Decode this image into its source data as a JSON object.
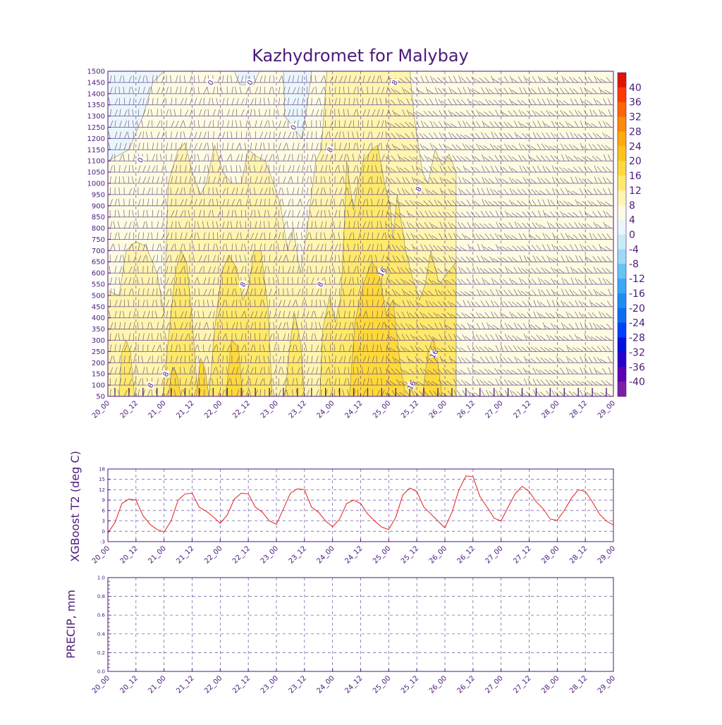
{
  "title": "Kazhydromet for Malybay",
  "time_labels": [
    "20_00",
    "20_12",
    "21_00",
    "21_12",
    "22_00",
    "22_12",
    "23_00",
    "23_12",
    "24_00",
    "24_12",
    "25_00",
    "25_12",
    "26_00",
    "26_12",
    "27_00",
    "27_12",
    "28_00",
    "28_12",
    "29_00"
  ],
  "colors": {
    "text": "#4b1a7a",
    "axis": "#4b1a7a",
    "grid": "#6a4c9c",
    "line": "#e0201b",
    "contour": "#8a8060"
  },
  "chart_data": [
    {
      "type": "heatmap",
      "name": "cross-section",
      "title": "Kazhydromet for Malybay",
      "ylim": [
        50,
        1500
      ],
      "yticks": [
        50,
        100,
        150,
        200,
        250,
        300,
        350,
        400,
        450,
        500,
        550,
        600,
        650,
        700,
        750,
        800,
        850,
        900,
        950,
        1000,
        1050,
        1100,
        1150,
        1200,
        1250,
        1300,
        1350,
        1400,
        1450,
        1500
      ],
      "contour_labels": [
        {
          "text": "0",
          "t": 2.3,
          "y": 1105
        },
        {
          "text": "0",
          "t": 7.3,
          "y": 1450
        },
        {
          "text": "0",
          "t": 10.1,
          "y": 1450
        },
        {
          "text": "0",
          "t": 13.2,
          "y": 1250
        },
        {
          "text": "8",
          "t": 3.0,
          "y": 100
        },
        {
          "text": "8",
          "t": 4.1,
          "y": 150
        },
        {
          "text": "8",
          "t": 9.6,
          "y": 550
        },
        {
          "text": "8",
          "t": 15.1,
          "y": 550
        },
        {
          "text": "8",
          "t": 15.8,
          "y": 1150
        },
        {
          "text": "8",
          "t": 20.4,
          "y": 1450
        },
        {
          "text": "8",
          "t": 22.1,
          "y": 975
        },
        {
          "text": "16",
          "t": 19.5,
          "y": 605
        },
        {
          "text": "16",
          "t": 21.6,
          "y": 100
        },
        {
          "text": "16",
          "t": 23.2,
          "y": 240
        }
      ]
    },
    {
      "type": "line",
      "name": "XGBoost T2",
      "ylabel": "XGBoost T2 (deg C)",
      "ylim": [
        -3,
        18
      ],
      "yticks": [
        -3,
        0,
        3,
        6,
        9,
        12,
        15,
        18
      ],
      "x_unit": "3-hour steps from 20_00",
      "values": [
        -0.5,
        2.5,
        8,
        9.3,
        9,
        4.5,
        2,
        0.5,
        -0.2,
        3,
        9,
        10.8,
        11,
        7,
        5.8,
        4.2,
        2.3,
        4.7,
        9.3,
        11,
        10.8,
        7,
        5.5,
        3,
        2,
        6.5,
        11,
        12.3,
        12,
        7,
        5.5,
        3,
        1.3,
        3.5,
        8,
        9,
        8,
        5,
        3,
        1.2,
        0.5,
        4,
        10.5,
        12.5,
        11.5,
        7,
        5,
        3,
        1,
        5.5,
        12,
        16,
        15.8,
        10,
        7,
        3.8,
        3,
        7,
        10.8,
        13,
        11.5,
        8.5,
        6.5,
        3.5,
        3.2,
        6,
        9.5,
        12,
        11.5,
        8.5,
        5,
        3,
        1.8
      ]
    },
    {
      "type": "line",
      "name": "PRECIP",
      "ylabel": "PRECIP, mm",
      "ylim": [
        0,
        1
      ],
      "yticks": [
        "0.0",
        "0.2",
        "0.4",
        "0.6",
        "0.8",
        "1.0"
      ],
      "values": []
    }
  ],
  "colorbar": {
    "labels": [
      "40",
      "36",
      "32",
      "28",
      "24",
      "20",
      "16",
      "12",
      "8",
      "4",
      "0",
      "-4",
      "-8",
      "-12",
      "-16",
      "-20",
      "-24",
      "-28",
      "-32",
      "-36",
      "-40"
    ],
    "colors": [
      "#7b1fa2",
      "#5c00b5",
      "#2a00c8",
      "#0010dd",
      "#0040ff",
      "#0a6ff0",
      "#1a8ff2",
      "#3aa9f5",
      "#68c3f5",
      "#9bd9f6",
      "#c8ebf9",
      "#eaf6fb",
      "#fdfbe2",
      "#fff5b0",
      "#ffe96a",
      "#ffd93a",
      "#ffc41a",
      "#ffab0a",
      "#ff8a04",
      "#ff6502",
      "#ff3a00",
      "#e01400"
    ]
  }
}
